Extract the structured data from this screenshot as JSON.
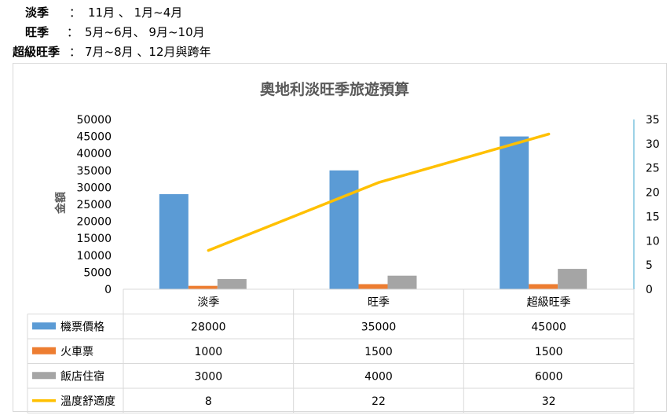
{
  "notes": [
    {
      "key": "淡季",
      "colon": "：",
      "value": "11月 、 1月~4月"
    },
    {
      "key": "旺季",
      "colon": "：",
      "value": "5月~6月、 9月~10月"
    },
    {
      "key": "超級旺季",
      "colon": "：",
      "value": "7月~8月 、12月與跨年"
    }
  ],
  "chart_data": {
    "type": "bar",
    "title": "奧地利淡旺季旅遊預算",
    "ylabel": "金額",
    "categories": [
      "淡季",
      "旺季",
      "超級旺季"
    ],
    "ylim": [
      0,
      50000
    ],
    "yticks": [
      "50000",
      "45000",
      "40000",
      "35000",
      "30000",
      "25000",
      "20000",
      "15000",
      "10000",
      "5000",
      "0"
    ],
    "y2lim": [
      0,
      35
    ],
    "y2ticks": [
      "35",
      "30",
      "25",
      "20",
      "15",
      "10",
      "5",
      "0"
    ],
    "grid": false,
    "legend": "data-table",
    "series": [
      {
        "name": "機票價格",
        "type": "bar",
        "axis": "left",
        "color": "#5b9bd5",
        "values": [
          28000,
          35000,
          45000
        ]
      },
      {
        "name": "火車票",
        "type": "bar",
        "axis": "left",
        "color": "#ed7d31",
        "values": [
          1000,
          1500,
          1500
        ]
      },
      {
        "name": "飯店住宿",
        "type": "bar",
        "axis": "left",
        "color": "#a5a5a5",
        "values": [
          3000,
          4000,
          6000
        ]
      },
      {
        "name": "溫度舒適度",
        "type": "line",
        "axis": "right",
        "color": "#ffc000",
        "values": [
          8,
          22,
          32
        ]
      }
    ]
  }
}
